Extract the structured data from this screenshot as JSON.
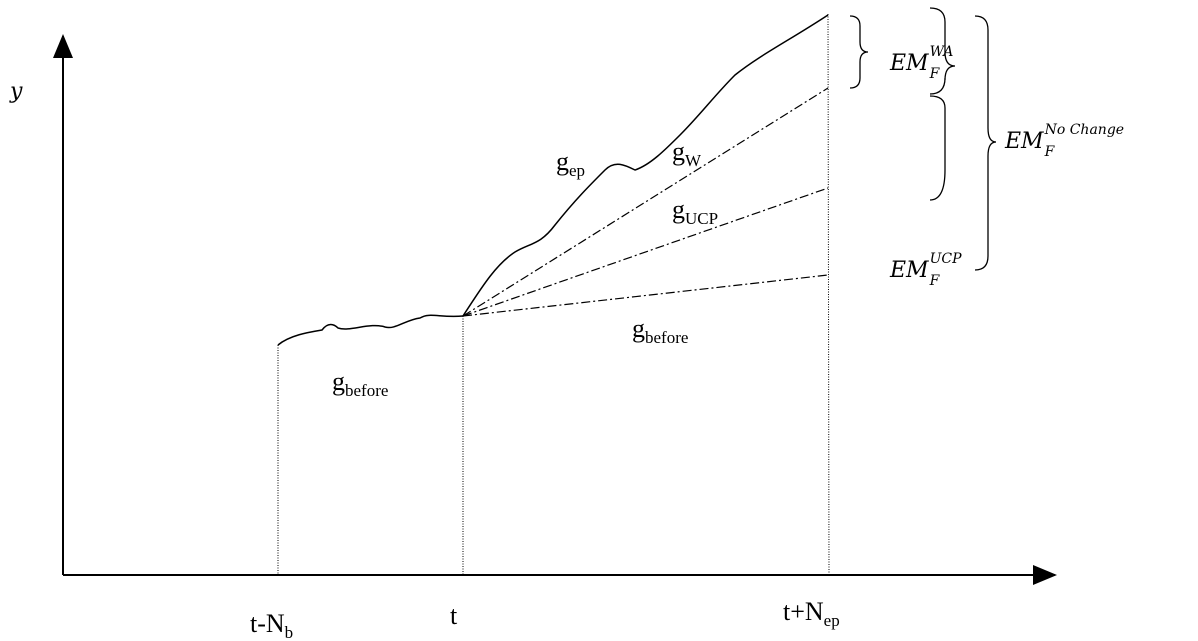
{
  "axes": {
    "y_label": "y"
  },
  "curve_labels": [
    {
      "base": "g",
      "sub": "ep"
    },
    {
      "base": "g",
      "sub": "W"
    },
    {
      "base": "g",
      "sub": "UCP"
    },
    {
      "base": "g",
      "sub": "before"
    },
    {
      "base": "g",
      "sub": "before"
    }
  ],
  "time_labels": [
    {
      "base": "t-N",
      "sub": "b"
    },
    {
      "base": "t",
      "sub": ""
    },
    {
      "base": "t+N",
      "sub": "ep"
    }
  ],
  "brace_labels": [
    {
      "base": "EM",
      "sub": "F",
      "sup": "WA"
    },
    {
      "base": "EM",
      "sub": "F",
      "sup": "UCP"
    },
    {
      "base": "EM",
      "sub": "F",
      "sup": "No Change"
    }
  ]
}
